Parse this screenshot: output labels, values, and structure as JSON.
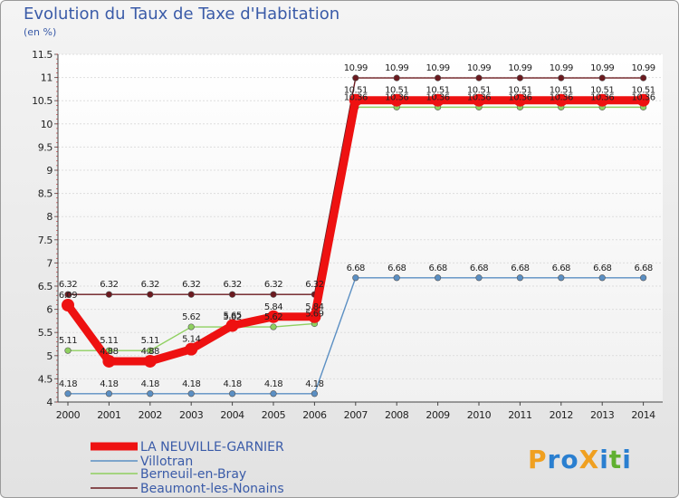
{
  "chart_data": {
    "type": "line",
    "title": "Evolution du Taux de Taxe d'Habitation",
    "ylabel": "(en %)",
    "xlabel": "",
    "ylim": [
      4,
      11.5
    ],
    "y_ticks": [
      "4",
      "4.5",
      "5",
      "5.5",
      "6",
      "6.5",
      "7",
      "7.5",
      "8",
      "8.5",
      "9",
      "9.5",
      "10",
      "10.5",
      "11",
      "11.5"
    ],
    "categories": [
      "2000",
      "2001",
      "2002",
      "2003",
      "2004",
      "2005",
      "2006",
      "2007",
      "2008",
      "2009",
      "2010",
      "2011",
      "2012",
      "2013",
      "2014"
    ],
    "series": [
      {
        "name": "Beaumont-les-Nonains",
        "color": "#6b1a1f",
        "values": [
          6.32,
          6.32,
          6.32,
          6.32,
          6.32,
          6.32,
          6.32,
          10.99,
          10.99,
          10.99,
          10.99,
          10.99,
          10.99,
          10.99,
          10.99
        ],
        "labels": [
          "6.32",
          "6.32",
          "6.32",
          "6.32",
          "6.32",
          "6.32",
          "6.32",
          "10.99",
          "10.99",
          "10.99",
          "10.99",
          "10.99",
          "10.99",
          "10.99",
          "10.99"
        ]
      },
      {
        "name": "Villotran",
        "color": "#5b8fc3",
        "values": [
          4.18,
          4.18,
          4.18,
          4.18,
          4.18,
          4.18,
          4.18,
          6.68,
          6.68,
          6.68,
          6.68,
          6.68,
          6.68,
          6.68,
          6.68
        ],
        "labels": [
          "4.18",
          "4.18",
          "4.18",
          "4.18",
          "4.18",
          "4.18",
          "4.18",
          "6.68",
          "6.68",
          "6.68",
          "6.68",
          "6.68",
          "6.68",
          "6.68",
          "6.68"
        ]
      },
      {
        "name": "Berneuil-en-Bray",
        "color": "#8fd060",
        "values": [
          5.11,
          5.11,
          5.11,
          5.62,
          5.62,
          5.62,
          5.69,
          10.36,
          10.36,
          10.36,
          10.36,
          10.36,
          10.36,
          10.36,
          10.36
        ],
        "labels": [
          "5.11",
          "5.11",
          "5.11",
          "5.62",
          "5.62",
          "5.62",
          "5.69",
          "10.36",
          "10.36",
          "10.36",
          "10.36",
          "10.36",
          "10.36",
          "10.36",
          "10.36"
        ]
      },
      {
        "name": "LA NEUVILLE-GARNIER",
        "color": "#ee1111",
        "values": [
          6.09,
          4.88,
          4.88,
          5.14,
          5.65,
          5.84,
          5.84,
          10.51,
          10.51,
          10.51,
          10.51,
          10.51,
          10.51,
          10.51,
          10.51
        ],
        "labels": [
          "6.09",
          "4.88",
          "4.88",
          "5.14",
          "5.65",
          "5.84",
          "5.84",
          "10.51",
          "10.51",
          "10.51",
          "10.51",
          "10.51",
          "10.51",
          "10.51",
          "10.51"
        ]
      }
    ],
    "legend": [
      "LA NEUVILLE-GARNIER",
      "Villotran",
      "Berneuil-en-Bray",
      "Beaumont-les-Nonains"
    ]
  },
  "header": {
    "title": "Evolution du Taux de Taxe d'Habitation",
    "subtitle": "(en %)"
  },
  "logo": {
    "text": "ProXiti",
    "letters": [
      "P",
      "r",
      "o",
      "X",
      "i",
      "t",
      "i"
    ],
    "letter_colors": [
      "#f0a020",
      "#2a7fd0",
      "#2a7fd0",
      "#f0a020",
      "#2a7fd0",
      "#60b030",
      "#2a7fd0"
    ]
  }
}
